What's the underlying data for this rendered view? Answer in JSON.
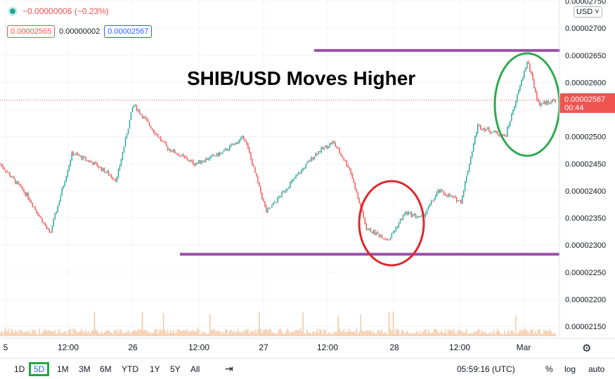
{
  "header": {
    "change": "−0.00000006 (−0.23%)",
    "sell_price": "0.00002565",
    "spread": "0.00000002",
    "buy_price": "0.00002567"
  },
  "title": "SHIB/USD Moves Higher",
  "currency_select": "USD ˅",
  "price_label": {
    "price": "0.00002567",
    "countdown": "00:44"
  },
  "timeframes": [
    "1D",
    "5D",
    "1M",
    "3M",
    "6M",
    "YTD",
    "1Y",
    "5Y",
    "All"
  ],
  "active_timeframe": "5D",
  "bottom_bar": {
    "time": "05:59:16 (UTC)",
    "percent": "%",
    "log": "log",
    "auto": "auto"
  },
  "colors": {
    "up": "#26a69a",
    "down": "#ef5350",
    "support_line": "#9c4fa9",
    "circle_red": "#e0262b",
    "circle_green": "#2fa84f",
    "volume": "#f5c9a6"
  },
  "chart_data": {
    "type": "candlestick",
    "symbol": "SHIB/USD",
    "y_ticks": [
      "0.00002750",
      "0.00002700",
      "0.00002650",
      "0.00002600",
      "0.00002550",
      "0.00002500",
      "0.00002450",
      "0.00002400",
      "0.00002350",
      "0.00002300",
      "0.00002250",
      "0.00002200",
      "0.00002150"
    ],
    "x_ticks": [
      "5",
      "12:00",
      "26",
      "12:00",
      "27",
      "12:00",
      "28",
      "12:00",
      "Mar"
    ],
    "ylim": [
      2.128e-05,
      2.752e-05
    ],
    "last_price": 2.567e-05,
    "close_path": [
      {
        "x": 0,
        "y": 2.45e-05
      },
      {
        "x": 0.05,
        "y": 2.39e-05
      },
      {
        "x": 0.09,
        "y": 2.32e-05
      },
      {
        "x": 0.13,
        "y": 2.47e-05
      },
      {
        "x": 0.17,
        "y": 2.45e-05
      },
      {
        "x": 0.21,
        "y": 2.42e-05
      },
      {
        "x": 0.24,
        "y": 2.56e-05
      },
      {
        "x": 0.3,
        "y": 2.48e-05
      },
      {
        "x": 0.35,
        "y": 2.45e-05
      },
      {
        "x": 0.4,
        "y": 2.47e-05
      },
      {
        "x": 0.44,
        "y": 2.5e-05
      },
      {
        "x": 0.48,
        "y": 2.36e-05
      },
      {
        "x": 0.52,
        "y": 2.41e-05
      },
      {
        "x": 0.57,
        "y": 2.47e-05
      },
      {
        "x": 0.6,
        "y": 2.49e-05
      },
      {
        "x": 0.63,
        "y": 2.44e-05
      },
      {
        "x": 0.66,
        "y": 2.33e-05
      },
      {
        "x": 0.7,
        "y": 2.31e-05
      },
      {
        "x": 0.73,
        "y": 2.36e-05
      },
      {
        "x": 0.76,
        "y": 2.35e-05
      },
      {
        "x": 0.79,
        "y": 2.4e-05
      },
      {
        "x": 0.83,
        "y": 2.38e-05
      },
      {
        "x": 0.86,
        "y": 2.52e-05
      },
      {
        "x": 0.91,
        "y": 2.5e-05
      },
      {
        "x": 0.95,
        "y": 2.64e-05
      },
      {
        "x": 0.97,
        "y": 2.56e-05
      },
      {
        "x": 1.0,
        "y": 2.567e-05
      }
    ],
    "levels": [
      {
        "label": "resistance",
        "value": 2.659e-05
      },
      {
        "label": "support",
        "value": 2.283e-05
      }
    ]
  }
}
